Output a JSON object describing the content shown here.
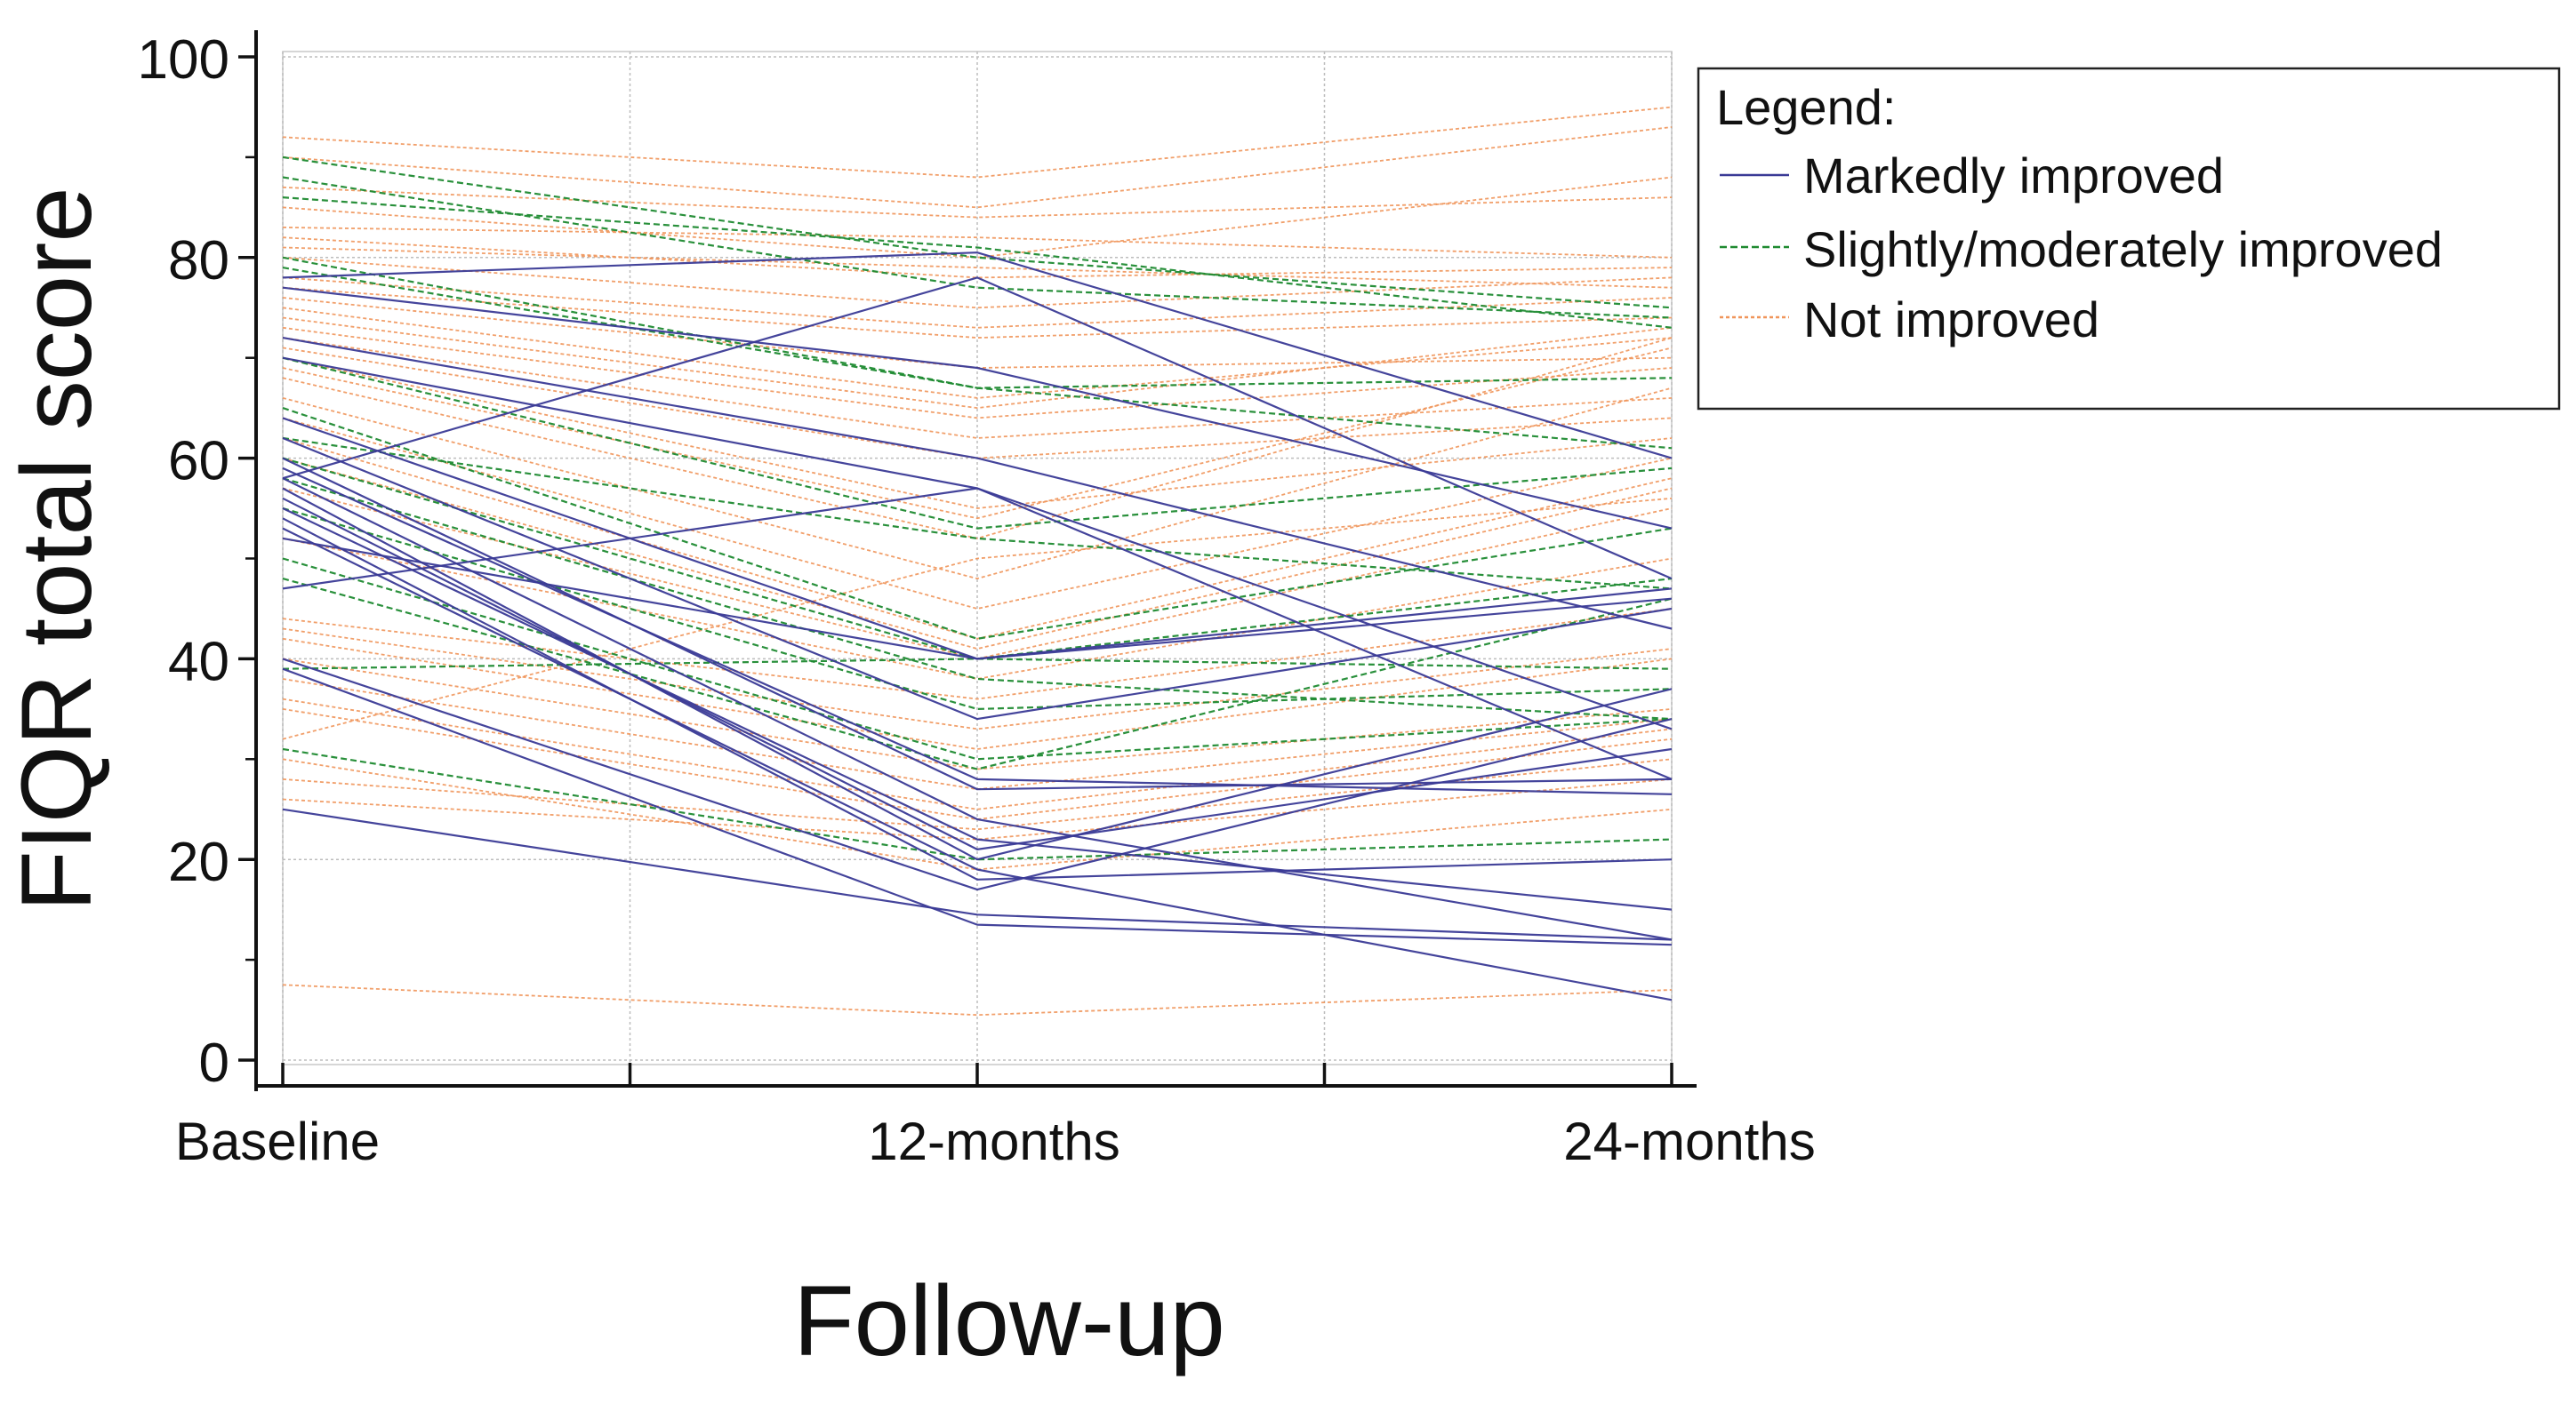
{
  "chart_data": {
    "type": "line",
    "title": "",
    "xlabel": "Follow-up",
    "ylabel": "FIQR total score",
    "x": [
      "Baseline",
      "12-months",
      "24-months"
    ],
    "ylim": [
      0,
      100
    ],
    "yticks": [
      0,
      20,
      40,
      60,
      80,
      100
    ],
    "grid": true,
    "legend": {
      "title": "Legend:",
      "position": "top-right",
      "entries": [
        "Markedly improved",
        "Slightly/moderately improved",
        "Not improved"
      ]
    },
    "colors": {
      "Markedly improved": "#3a3a96",
      "Slightly/moderately improved": "#1e8a30",
      "Not improved": "#f0955a"
    },
    "series": [
      {
        "group": "Markedly improved",
        "values": [
          78,
          80.5,
          60
        ]
      },
      {
        "group": "Markedly improved",
        "values": [
          77,
          69,
          53
        ]
      },
      {
        "group": "Markedly improved",
        "values": [
          72,
          60,
          43
        ]
      },
      {
        "group": "Markedly improved",
        "values": [
          70,
          57,
          33
        ]
      },
      {
        "group": "Markedly improved",
        "values": [
          64,
          40,
          47
        ]
      },
      {
        "group": "Markedly improved",
        "values": [
          62,
          34,
          45
        ]
      },
      {
        "group": "Markedly improved",
        "values": [
          60,
          27,
          28
        ]
      },
      {
        "group": "Markedly improved",
        "values": [
          59,
          28,
          26.5
        ]
      },
      {
        "group": "Markedly improved",
        "values": [
          58,
          24,
          12
        ]
      },
      {
        "group": "Markedly improved",
        "values": [
          57,
          20,
          37
        ]
      },
      {
        "group": "Markedly improved",
        "values": [
          56,
          21,
          31
        ]
      },
      {
        "group": "Markedly improved",
        "values": [
          55,
          22,
          15
        ]
      },
      {
        "group": "Markedly improved",
        "values": [
          54,
          18,
          20
        ]
      },
      {
        "group": "Markedly improved",
        "values": [
          53,
          19,
          6
        ]
      },
      {
        "group": "Markedly improved",
        "values": [
          47,
          57,
          28
        ]
      },
      {
        "group": "Markedly improved",
        "values": [
          40,
          17,
          34
        ]
      },
      {
        "group": "Markedly improved",
        "values": [
          39,
          13.5,
          11.5
        ]
      },
      {
        "group": "Markedly improved",
        "values": [
          25,
          14.5,
          12
        ]
      },
      {
        "group": "Markedly improved",
        "values": [
          58,
          78,
          48
        ]
      },
      {
        "group": "Markedly improved",
        "values": [
          52,
          40,
          46
        ]
      },
      {
        "group": "Slightly/moderately improved",
        "values": [
          90,
          80,
          75
        ]
      },
      {
        "group": "Slightly/moderately improved",
        "values": [
          88,
          77,
          74
        ]
      },
      {
        "group": "Slightly/moderately improved",
        "values": [
          86,
          81,
          73
        ]
      },
      {
        "group": "Slightly/moderately improved",
        "values": [
          80,
          67,
          68
        ]
      },
      {
        "group": "Slightly/moderately improved",
        "values": [
          79,
          67,
          61
        ]
      },
      {
        "group": "Slightly/moderately improved",
        "values": [
          70,
          53,
          59
        ]
      },
      {
        "group": "Slightly/moderately improved",
        "values": [
          65,
          42,
          53
        ]
      },
      {
        "group": "Slightly/moderately improved",
        "values": [
          60,
          40,
          48
        ]
      },
      {
        "group": "Slightly/moderately improved",
        "values": [
          58,
          38,
          34
        ]
      },
      {
        "group": "Slightly/moderately improved",
        "values": [
          55,
          35,
          37
        ]
      },
      {
        "group": "Slightly/moderately improved",
        "values": [
          50,
          30,
          34
        ]
      },
      {
        "group": "Slightly/moderately improved",
        "values": [
          48,
          29,
          46
        ]
      },
      {
        "group": "Slightly/moderately improved",
        "values": [
          39,
          40,
          39
        ]
      },
      {
        "group": "Slightly/moderately improved",
        "values": [
          31,
          20,
          22
        ]
      },
      {
        "group": "Slightly/moderately improved",
        "values": [
          62,
          52,
          47
        ]
      },
      {
        "group": "Not improved",
        "values": [
          92,
          88,
          95
        ]
      },
      {
        "group": "Not improved",
        "values": [
          90,
          85,
          93
        ]
      },
      {
        "group": "Not improved",
        "values": [
          87,
          84,
          86
        ]
      },
      {
        "group": "Not improved",
        "values": [
          85,
          80,
          88
        ]
      },
      {
        "group": "Not improved",
        "values": [
          83,
          82,
          80
        ]
      },
      {
        "group": "Not improved",
        "values": [
          82,
          78,
          79
        ]
      },
      {
        "group": "Not improved",
        "values": [
          81,
          79,
          77
        ]
      },
      {
        "group": "Not improved",
        "values": [
          80,
          75,
          78
        ]
      },
      {
        "group": "Not improved",
        "values": [
          78,
          73,
          76
        ]
      },
      {
        "group": "Not improved",
        "values": [
          77,
          72,
          74
        ]
      },
      {
        "group": "Not improved",
        "values": [
          76,
          69,
          70
        ]
      },
      {
        "group": "Not improved",
        "values": [
          75,
          66,
          72
        ]
      },
      {
        "group": "Not improved",
        "values": [
          74,
          65,
          73
        ]
      },
      {
        "group": "Not improved",
        "values": [
          73,
          64,
          69
        ]
      },
      {
        "group": "Not improved",
        "values": [
          72,
          62,
          66
        ]
      },
      {
        "group": "Not improved",
        "values": [
          71,
          60,
          64
        ]
      },
      {
        "group": "Not improved",
        "values": [
          70,
          55,
          62
        ]
      },
      {
        "group": "Not improved",
        "values": [
          69,
          54,
          71
        ]
      },
      {
        "group": "Not improved",
        "values": [
          68,
          52,
          72
        ]
      },
      {
        "group": "Not improved",
        "values": [
          66,
          48,
          67
        ]
      },
      {
        "group": "Not improved",
        "values": [
          64,
          45,
          60
        ]
      },
      {
        "group": "Not improved",
        "values": [
          62,
          42,
          58
        ]
      },
      {
        "group": "Not improved",
        "values": [
          60,
          41,
          57
        ]
      },
      {
        "group": "Not improved",
        "values": [
          57,
          40,
          55
        ]
      },
      {
        "group": "Not improved",
        "values": [
          52,
          38,
          50
        ]
      },
      {
        "group": "Not improved",
        "values": [
          44,
          36,
          45
        ]
      },
      {
        "group": "Not improved",
        "values": [
          43,
          33,
          41
        ]
      },
      {
        "group": "Not improved",
        "values": [
          42,
          31,
          40
        ]
      },
      {
        "group": "Not improved",
        "values": [
          40,
          29,
          35
        ]
      },
      {
        "group": "Not improved",
        "values": [
          38,
          27,
          34
        ]
      },
      {
        "group": "Not improved",
        "values": [
          36,
          25,
          33
        ]
      },
      {
        "group": "Not improved",
        "values": [
          35,
          24,
          32
        ]
      },
      {
        "group": "Not improved",
        "values": [
          28,
          23,
          30
        ]
      },
      {
        "group": "Not improved",
        "values": [
          26,
          22,
          28
        ]
      },
      {
        "group": "Not improved",
        "values": [
          30,
          19,
          25
        ]
      },
      {
        "group": "Not improved",
        "values": [
          32,
          50,
          56
        ]
      },
      {
        "group": "Not improved",
        "values": [
          7.5,
          4.5,
          7
        ]
      }
    ]
  }
}
